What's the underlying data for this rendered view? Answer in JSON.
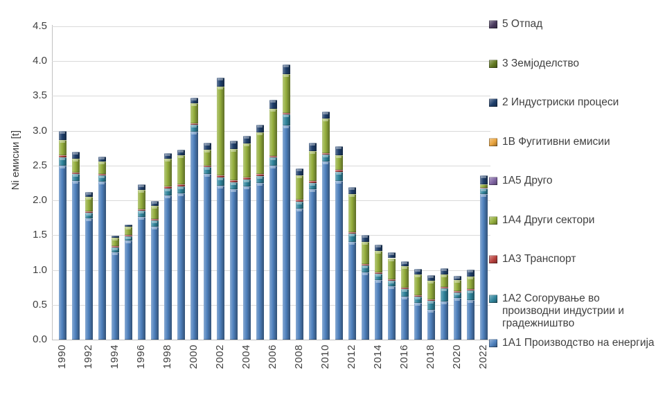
{
  "chart_data": {
    "type": "bar",
    "stacked": true,
    "ylabel": "Ni емисии [t]",
    "ylim": [
      0,
      4.5
    ],
    "ytick_step": 0.5,
    "ytick_labels": [
      "0.0",
      "0.5",
      "1.0",
      "1.5",
      "2.0",
      "2.5",
      "3.0",
      "3.5",
      "4.0",
      "4.5"
    ],
    "grid": true,
    "legend_position": "right",
    "categories": [
      1990,
      1991,
      1992,
      1993,
      1994,
      1995,
      1996,
      1997,
      1998,
      1999,
      2000,
      2001,
      2002,
      2003,
      2004,
      2005,
      2006,
      2007,
      2008,
      2009,
      2010,
      2011,
      2012,
      2013,
      2014,
      2015,
      2016,
      2017,
      2018,
      2019,
      2020,
      2021,
      2022
    ],
    "xtick_labels": [
      "1990",
      "1992",
      "1994",
      "1996",
      "1998",
      "2000",
      "2002",
      "2004",
      "2006",
      "2008",
      "2010",
      "2012",
      "2014",
      "2016",
      "2018",
      "2020",
      "2022"
    ],
    "series": [
      {
        "id": "1A1",
        "name": "1A1 Производство на енергија",
        "color": "#4f81bd",
        "values": [
          2.5,
          2.28,
          1.74,
          2.27,
          1.25,
          1.42,
          1.76,
          1.62,
          2.07,
          2.1,
          2.99,
          2.38,
          2.21,
          2.16,
          2.2,
          2.25,
          2.5,
          3.08,
          1.88,
          2.16,
          2.56,
          2.28,
          1.4,
          0.97,
          0.86,
          0.77,
          0.62,
          0.53,
          0.43,
          0.55,
          0.6,
          0.57,
          2.09
        ]
      },
      {
        "id": "1A2",
        "name": "1A2 Согорување во производни индустрии и градежништво",
        "color": "#31859c",
        "values": [
          0.12,
          0.1,
          0.08,
          0.09,
          0.07,
          0.06,
          0.09,
          0.09,
          0.1,
          0.1,
          0.1,
          0.1,
          0.12,
          0.1,
          0.1,
          0.1,
          0.12,
          0.16,
          0.1,
          0.09,
          0.1,
          0.13,
          0.12,
          0.1,
          0.09,
          0.08,
          0.11,
          0.09,
          0.13,
          0.19,
          0.08,
          0.14,
          0.08
        ]
      },
      {
        "id": "1A3",
        "name": "1A3 Транспорт",
        "color": "#b8413d",
        "values": [
          0.03,
          0.02,
          0.02,
          0.02,
          0.02,
          0.02,
          0.02,
          0.02,
          0.03,
          0.03,
          0.02,
          0.02,
          0.03,
          0.03,
          0.03,
          0.03,
          0.02,
          0.02,
          0.03,
          0.03,
          0.02,
          0.03,
          0.02,
          0.02,
          0.02,
          0.02,
          0.02,
          0.02,
          0.02,
          0.02,
          0.02,
          0.02,
          0.01
        ]
      },
      {
        "id": "1A4",
        "name": "1A4 Други сектори",
        "color": "#94ae3d",
        "values": [
          0.22,
          0.2,
          0.21,
          0.18,
          0.12,
          0.12,
          0.28,
          0.19,
          0.4,
          0.42,
          0.29,
          0.23,
          1.27,
          0.45,
          0.49,
          0.6,
          0.68,
          0.55,
          0.35,
          0.43,
          0.5,
          0.21,
          0.55,
          0.31,
          0.3,
          0.3,
          0.31,
          0.3,
          0.27,
          0.18,
          0.16,
          0.18,
          0.05
        ]
      },
      {
        "id": "1A5",
        "name": "1A5 Друго",
        "color": "#8064a2",
        "values": [
          0,
          0,
          0,
          0,
          0,
          0,
          0,
          0,
          0,
          0,
          0,
          0,
          0,
          0,
          0,
          0,
          0,
          0,
          0,
          0,
          0,
          0,
          0,
          0,
          0,
          0,
          0,
          0,
          0,
          0,
          0,
          0,
          0
        ]
      },
      {
        "id": "1B",
        "name": "1B Фугитивни емисии",
        "color": "#e8a33d",
        "values": [
          0,
          0,
          0,
          0,
          0,
          0,
          0,
          0,
          0,
          0,
          0,
          0,
          0,
          0,
          0,
          0,
          0,
          0,
          0,
          0,
          0,
          0,
          0,
          0,
          0,
          0,
          0,
          0,
          0,
          0,
          0,
          0,
          0
        ]
      },
      {
        "id": "2",
        "name": "2 Индустриски процеси",
        "color": "#1f3f6b",
        "values": [
          0.13,
          0.1,
          0.07,
          0.07,
          0.03,
          0.03,
          0.08,
          0.07,
          0.08,
          0.08,
          0.07,
          0.1,
          0.13,
          0.12,
          0.11,
          0.11,
          0.12,
          0.14,
          0.1,
          0.12,
          0.1,
          0.13,
          0.1,
          0.1,
          0.09,
          0.08,
          0.07,
          0.08,
          0.08,
          0.09,
          0.06,
          0.1,
          0.13
        ]
      },
      {
        "id": "3",
        "name": "3 Земјоделство",
        "color": "#637a21",
        "values": [
          0,
          0,
          0,
          0,
          0,
          0,
          0,
          0,
          0,
          0,
          0,
          0,
          0,
          0,
          0,
          0,
          0,
          0,
          0,
          0,
          0,
          0,
          0,
          0,
          0,
          0,
          0,
          0,
          0,
          0,
          0,
          0,
          0
        ]
      },
      {
        "id": "5",
        "name": "5 Отпад",
        "color": "#4a3a5e",
        "values": [
          0,
          0,
          0,
          0,
          0,
          0,
          0,
          0,
          0,
          0,
          0,
          0,
          0,
          0,
          0,
          0,
          0,
          0,
          0,
          0,
          0,
          0,
          0,
          0,
          0,
          0,
          0,
          0,
          0,
          0,
          0,
          0,
          0
        ]
      }
    ],
    "legend_order": [
      "5",
      "3",
      "2",
      "1B",
      "1A5",
      "1A4",
      "1A3",
      "1A2",
      "1A1"
    ]
  }
}
